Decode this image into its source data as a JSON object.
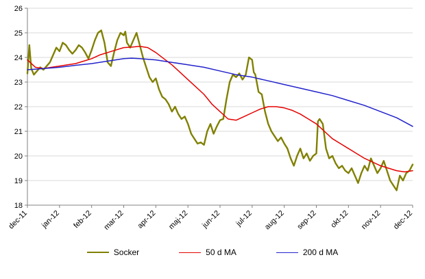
{
  "chart_data": {
    "type": "line",
    "title": "",
    "xlabel": "",
    "ylabel": "",
    "ylim": [
      18,
      26
    ],
    "yticks": [
      18,
      19,
      20,
      21,
      22,
      23,
      24,
      25,
      26
    ],
    "xlim": [
      0,
      12
    ],
    "categories": [
      "dec-11",
      "jan-12",
      "feb-12",
      "mar-12",
      "apr-12",
      "maj-12",
      "jun-12",
      "jul-12",
      "aug-12",
      "sep-12",
      "okt-12",
      "nov-12",
      "dec-12"
    ],
    "grid": "horizontal",
    "legend_position": "bottom",
    "colors": {
      "gridline": "#d9d9d9",
      "axis": "#808080",
      "text": "#000000"
    },
    "series": [
      {
        "name": "Socker",
        "color": "#808000",
        "stroke_width": 2.4,
        "points": [
          [
            0.0,
            23.35
          ],
          [
            0.06,
            24.5
          ],
          [
            0.12,
            23.55
          ],
          [
            0.2,
            23.3
          ],
          [
            0.3,
            23.45
          ],
          [
            0.4,
            23.6
          ],
          [
            0.5,
            23.5
          ],
          [
            0.6,
            23.65
          ],
          [
            0.7,
            23.8
          ],
          [
            0.8,
            24.1
          ],
          [
            0.9,
            24.4
          ],
          [
            1.0,
            24.25
          ],
          [
            1.1,
            24.6
          ],
          [
            1.2,
            24.5
          ],
          [
            1.3,
            24.3
          ],
          [
            1.4,
            24.15
          ],
          [
            1.5,
            24.3
          ],
          [
            1.6,
            24.5
          ],
          [
            1.7,
            24.4
          ],
          [
            1.8,
            24.2
          ],
          [
            1.9,
            23.95
          ],
          [
            2.0,
            24.3
          ],
          [
            2.1,
            24.7
          ],
          [
            2.2,
            25.0
          ],
          [
            2.3,
            25.1
          ],
          [
            2.4,
            24.6
          ],
          [
            2.5,
            23.8
          ],
          [
            2.6,
            23.65
          ],
          [
            2.7,
            24.2
          ],
          [
            2.8,
            24.7
          ],
          [
            2.9,
            25.0
          ],
          [
            3.0,
            24.9
          ],
          [
            3.05,
            25.05
          ],
          [
            3.1,
            24.6
          ],
          [
            3.2,
            24.4
          ],
          [
            3.3,
            24.7
          ],
          [
            3.4,
            25.0
          ],
          [
            3.5,
            24.5
          ],
          [
            3.6,
            24.0
          ],
          [
            3.7,
            23.6
          ],
          [
            3.8,
            23.2
          ],
          [
            3.9,
            23.0
          ],
          [
            4.0,
            23.15
          ],
          [
            4.1,
            22.7
          ],
          [
            4.2,
            22.4
          ],
          [
            4.3,
            22.3
          ],
          [
            4.4,
            22.1
          ],
          [
            4.5,
            21.8
          ],
          [
            4.6,
            22.0
          ],
          [
            4.7,
            21.7
          ],
          [
            4.8,
            21.5
          ],
          [
            4.9,
            21.6
          ],
          [
            5.0,
            21.3
          ],
          [
            5.1,
            20.9
          ],
          [
            5.2,
            20.7
          ],
          [
            5.3,
            20.5
          ],
          [
            5.4,
            20.55
          ],
          [
            5.5,
            20.45
          ],
          [
            5.6,
            21.0
          ],
          [
            5.7,
            21.3
          ],
          [
            5.8,
            20.9
          ],
          [
            5.9,
            21.2
          ],
          [
            6.0,
            21.45
          ],
          [
            6.1,
            21.5
          ],
          [
            6.2,
            22.3
          ],
          [
            6.3,
            23.0
          ],
          [
            6.4,
            23.3
          ],
          [
            6.5,
            23.2
          ],
          [
            6.6,
            23.35
          ],
          [
            6.7,
            23.1
          ],
          [
            6.8,
            23.3
          ],
          [
            6.9,
            24.0
          ],
          [
            7.0,
            23.9
          ],
          [
            7.05,
            23.4
          ],
          [
            7.1,
            23.3
          ],
          [
            7.2,
            22.6
          ],
          [
            7.3,
            22.5
          ],
          [
            7.4,
            21.8
          ],
          [
            7.5,
            21.3
          ],
          [
            7.6,
            21.0
          ],
          [
            7.7,
            20.8
          ],
          [
            7.8,
            20.6
          ],
          [
            7.9,
            20.75
          ],
          [
            8.0,
            20.5
          ],
          [
            8.1,
            20.3
          ],
          [
            8.2,
            19.9
          ],
          [
            8.3,
            19.6
          ],
          [
            8.4,
            20.0
          ],
          [
            8.5,
            20.3
          ],
          [
            8.6,
            19.9
          ],
          [
            8.7,
            20.1
          ],
          [
            8.8,
            19.8
          ],
          [
            8.9,
            20.0
          ],
          [
            9.0,
            20.1
          ],
          [
            9.05,
            21.4
          ],
          [
            9.1,
            21.5
          ],
          [
            9.2,
            21.3
          ],
          [
            9.3,
            20.3
          ],
          [
            9.4,
            19.9
          ],
          [
            9.5,
            20.0
          ],
          [
            9.6,
            19.7
          ],
          [
            9.7,
            19.5
          ],
          [
            9.8,
            19.6
          ],
          [
            9.9,
            19.4
          ],
          [
            10.0,
            19.3
          ],
          [
            10.1,
            19.5
          ],
          [
            10.2,
            19.2
          ],
          [
            10.3,
            18.9
          ],
          [
            10.4,
            19.3
          ],
          [
            10.5,
            19.6
          ],
          [
            10.6,
            19.4
          ],
          [
            10.7,
            19.9
          ],
          [
            10.8,
            19.6
          ],
          [
            10.9,
            19.3
          ],
          [
            11.0,
            19.5
          ],
          [
            11.1,
            19.8
          ],
          [
            11.2,
            19.4
          ],
          [
            11.3,
            19.0
          ],
          [
            11.4,
            18.8
          ],
          [
            11.5,
            18.6
          ],
          [
            11.6,
            19.2
          ],
          [
            11.7,
            19.0
          ],
          [
            11.8,
            19.3
          ],
          [
            11.9,
            19.4
          ],
          [
            12.0,
            19.65
          ]
        ]
      },
      {
        "name": "50 d MA",
        "color": "#e60000",
        "stroke_width": 1.5,
        "points": [
          [
            0.0,
            23.9
          ],
          [
            0.25,
            23.6
          ],
          [
            0.5,
            23.55
          ],
          [
            0.75,
            23.6
          ],
          [
            1.0,
            23.65
          ],
          [
            1.25,
            23.7
          ],
          [
            1.5,
            23.75
          ],
          [
            1.75,
            23.85
          ],
          [
            2.0,
            23.95
          ],
          [
            2.25,
            24.1
          ],
          [
            2.5,
            24.2
          ],
          [
            2.75,
            24.3
          ],
          [
            3.0,
            24.4
          ],
          [
            3.25,
            24.42
          ],
          [
            3.5,
            24.45
          ],
          [
            3.75,
            24.4
          ],
          [
            4.0,
            24.2
          ],
          [
            4.25,
            23.95
          ],
          [
            4.5,
            23.7
          ],
          [
            4.75,
            23.4
          ],
          [
            5.0,
            23.1
          ],
          [
            5.25,
            22.8
          ],
          [
            5.5,
            22.5
          ],
          [
            5.75,
            22.1
          ],
          [
            6.0,
            21.8
          ],
          [
            6.25,
            21.5
          ],
          [
            6.5,
            21.45
          ],
          [
            6.75,
            21.6
          ],
          [
            7.0,
            21.75
          ],
          [
            7.25,
            21.9
          ],
          [
            7.5,
            22.0
          ],
          [
            7.75,
            22.0
          ],
          [
            8.0,
            21.95
          ],
          [
            8.25,
            21.85
          ],
          [
            8.5,
            21.7
          ],
          [
            8.75,
            21.5
          ],
          [
            9.0,
            21.3
          ],
          [
            9.25,
            21.0
          ],
          [
            9.5,
            20.7
          ],
          [
            9.75,
            20.5
          ],
          [
            10.0,
            20.3
          ],
          [
            10.25,
            20.1
          ],
          [
            10.5,
            19.9
          ],
          [
            10.75,
            19.75
          ],
          [
            11.0,
            19.6
          ],
          [
            11.25,
            19.5
          ],
          [
            11.5,
            19.4
          ],
          [
            11.75,
            19.35
          ],
          [
            12.0,
            19.4
          ]
        ]
      },
      {
        "name": "200 d MA",
        "color": "#2222cc",
        "stroke_width": 1.5,
        "points": [
          [
            0.0,
            23.5
          ],
          [
            0.5,
            23.55
          ],
          [
            1.0,
            23.6
          ],
          [
            1.5,
            23.68
          ],
          [
            2.0,
            23.75
          ],
          [
            2.5,
            23.85
          ],
          [
            3.0,
            23.95
          ],
          [
            3.25,
            23.97
          ],
          [
            3.5,
            23.95
          ],
          [
            4.0,
            23.9
          ],
          [
            4.5,
            23.8
          ],
          [
            5.0,
            23.7
          ],
          [
            5.5,
            23.6
          ],
          [
            6.0,
            23.45
          ],
          [
            6.5,
            23.3
          ],
          [
            7.0,
            23.2
          ],
          [
            7.5,
            23.05
          ],
          [
            8.0,
            22.9
          ],
          [
            8.5,
            22.75
          ],
          [
            9.0,
            22.6
          ],
          [
            9.5,
            22.45
          ],
          [
            10.0,
            22.25
          ],
          [
            10.5,
            22.05
          ],
          [
            11.0,
            21.8
          ],
          [
            11.5,
            21.55
          ],
          [
            12.0,
            21.2
          ]
        ]
      }
    ]
  },
  "legend": {
    "items": [
      {
        "label": "Socker"
      },
      {
        "label": "50 d MA"
      },
      {
        "label": "200 d MA"
      }
    ]
  }
}
